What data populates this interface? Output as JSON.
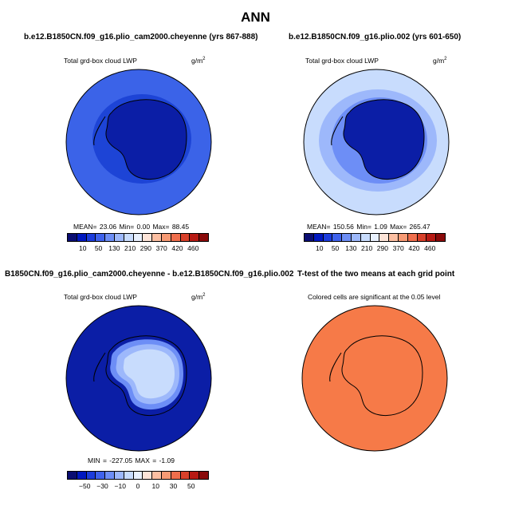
{
  "title": "ANN",
  "panels": {
    "p1": {
      "title": "b.e12.B1850CN.f09_g16.plio_cam2000.cheyenne (yrs 867-888)",
      "variable": "Total grd-box cloud LWP",
      "units": "g/m",
      "units_exp": "2",
      "stats": "MEAN=   23.06   Min=    0.00   Max=   88.45"
    },
    "p2": {
      "title": "b.e12.B1850CN.f09_g16.plio.002 (yrs 601-650)",
      "variable": "Total grd-box cloud LWP",
      "units": "g/m",
      "units_exp": "2",
      "stats": "MEAN=  150.56   Min=    1.09   Max=  265.47"
    },
    "p3": {
      "title": "B1850CN.f09_g16.plio_cam2000.cheyenne - b.e12.B1850CN.f09_g16.plio.002",
      "variable": "Total grd-box cloud LWP",
      "units": "g/m",
      "units_exp": "2",
      "stats": "MIN = -227.05  MAX =  -1.09"
    },
    "p4": {
      "title": "T-test of the two means at each grid point",
      "subtitle": "Colored cells are significant at the 0.05 level"
    }
  },
  "colorbar_abs": {
    "colors": [
      "#0a0d72",
      "#0018c0",
      "#1c3cdc",
      "#3f62ec",
      "#6d8ef6",
      "#9db8fb",
      "#c8dcfd",
      "#e9f1fe",
      "#fde4d8",
      "#fcbfa2",
      "#f79a74",
      "#ef6e4c",
      "#d8402a",
      "#b71a14",
      "#8a0a0a"
    ],
    "ticks": [
      "10",
      "50",
      "130",
      "210",
      "290",
      "370",
      "420",
      "460"
    ]
  },
  "colorbar_diff": {
    "colors": [
      "#0a0d72",
      "#0018c0",
      "#1c3cdc",
      "#3f62ec",
      "#6d8ef6",
      "#9db8fb",
      "#c8dcfd",
      "#e9f1fe",
      "#fde4d8",
      "#fcbfa2",
      "#f79a74",
      "#ef6e4c",
      "#d8402a",
      "#b71a14",
      "#8a0a0a"
    ],
    "ticks": [
      "−50",
      "−30",
      "−10",
      "0",
      "10",
      "30",
      "50"
    ]
  },
  "fill_colors": {
    "p1_ocean": "#3b63e8",
    "p1_ring": "#1d44d6",
    "p1_land": "#0b1ea6",
    "p2_ocean": "#c8dcfd",
    "p2_ring": "#6d8ef6",
    "p2_land": "#0b1ea6",
    "p3_ocean": "#0b1ea6",
    "p3_land": "#c8dcfd",
    "p4_fill": "#f67a48"
  }
}
